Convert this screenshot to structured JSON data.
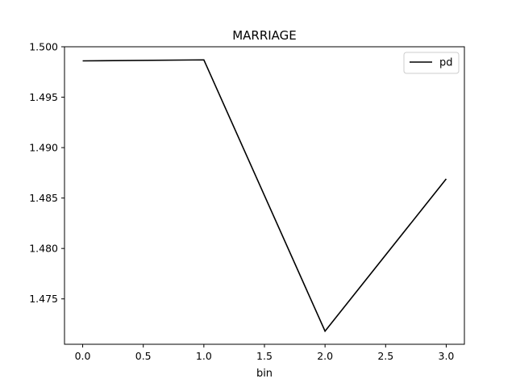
{
  "chart_data": {
    "type": "line",
    "title": "MARRIAGE",
    "xlabel": "bin",
    "ylabel": "",
    "xlim": [
      -0.15,
      3.15
    ],
    "ylim": [
      1.4705,
      1.5
    ],
    "x_ticks": [
      0.0,
      0.5,
      1.0,
      1.5,
      2.0,
      2.5,
      3.0
    ],
    "x_tick_labels": [
      "0.0",
      "0.5",
      "1.0",
      "1.5",
      "2.0",
      "2.5",
      "3.0"
    ],
    "y_ticks": [
      1.475,
      1.48,
      1.485,
      1.49,
      1.495,
      1.5
    ],
    "y_tick_labels": [
      "1.475",
      "1.480",
      "1.485",
      "1.490",
      "1.495",
      "1.500"
    ],
    "grid": false,
    "legend_position": "top-right",
    "series": [
      {
        "name": "pd",
        "color": "#000000",
        "x": [
          0,
          1,
          2,
          3
        ],
        "y": [
          1.4986,
          1.4987,
          1.4718,
          1.4869
        ]
      }
    ]
  }
}
